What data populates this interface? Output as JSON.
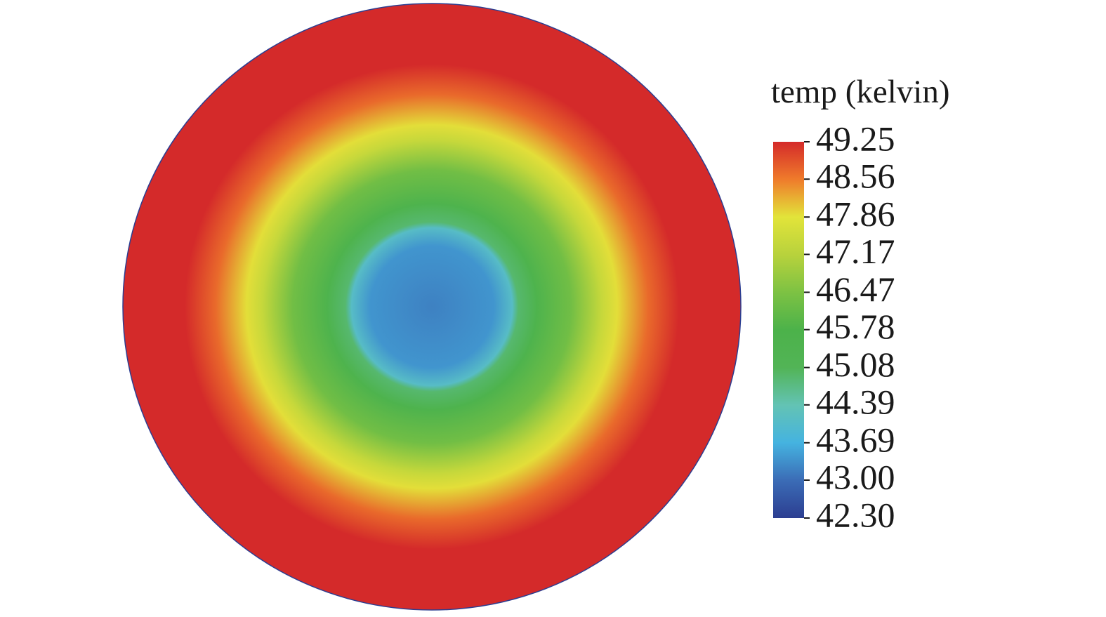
{
  "chart_data": {
    "type": "radial-field",
    "colorbar_label": "temp (kelvin)",
    "clim": [
      42.3,
      49.25
    ],
    "ticks": [
      49.25,
      48.56,
      47.86,
      47.17,
      46.47,
      45.78,
      45.08,
      44.39,
      43.69,
      {
        "value": 43,
        "label": "43.00"
      },
      {
        "value": 42.3,
        "label": "42.30"
      }
    ],
    "colormap": [
      "#2c3e91",
      "#3b6cb6",
      "#45b3e0",
      "#63c3b4",
      "#52b456",
      "#4cb24a",
      "#7dc243",
      "#b8d23c",
      "#e2e43a",
      "#ef7b2b",
      "#d42a2a"
    ],
    "field": {
      "r": [
        0,
        0.2,
        0.26,
        0.28,
        0.34,
        0.45,
        0.55,
        0.6,
        0.7,
        0.8,
        1
      ],
      "values": [
        43.2,
        43.4,
        44.1,
        44.9,
        45.6,
        46.3,
        47.4,
        47.9,
        48.7,
        49.25,
        49.25
      ]
    }
  }
}
